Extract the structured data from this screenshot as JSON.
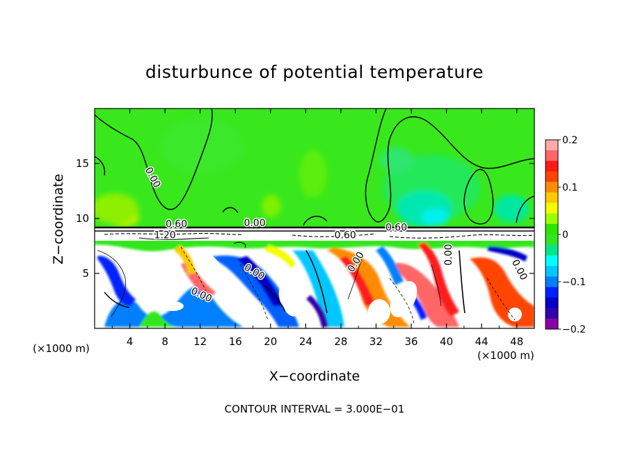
{
  "chart_data": {
    "type": "heatmap",
    "title": "disturbunce of potential temperature",
    "xlabel": "X−coordinate",
    "ylabel": "Z−coordinate",
    "x_unit": "(×1000 m)",
    "x_unit_right": "(×1000 m)",
    "footer": "CONTOUR INTERVAL = 3.000E−01",
    "xlim": [
      0,
      50
    ],
    "ylim": [
      0,
      20
    ],
    "x_ticks": [
      4,
      8,
      12,
      16,
      20,
      24,
      28,
      32,
      36,
      40,
      44,
      48
    ],
    "y_ticks": [
      5,
      10,
      15
    ],
    "colorbar": {
      "range": [
        -0.2,
        0.2
      ],
      "tick_values": [
        0.2,
        0.1,
        0,
        -0.1,
        -0.2
      ],
      "tick_labels": [
        "0.2",
        "0.1",
        "0",
        "−0.1",
        "−0.2"
      ],
      "colors_top_to_bottom": [
        "#ffaaaa",
        "#ff6666",
        "#ff1a1a",
        "#ff4400",
        "#ff8c00",
        "#ffc800",
        "#f2ff00",
        "#9cff00",
        "#2ee600",
        "#32e61e",
        "#00e68c",
        "#00ffff",
        "#00c8ff",
        "#0080ff",
        "#0020ff",
        "#0000c8",
        "#3200aa",
        "#8c00aa"
      ]
    },
    "contour_labels": [
      {
        "text": "0.00",
        "x": 6.3,
        "z": 13.6,
        "rotate": 62
      },
      {
        "text": "0.60",
        "x": 9.3,
        "z": 9.2,
        "rotate": 0
      },
      {
        "text": "1.20",
        "x": 8.0,
        "z": 8.2,
        "rotate": 0
      },
      {
        "text": "0.00",
        "x": 18.2,
        "z": 9.3,
        "rotate": 0
      },
      {
        "text": "0.60",
        "x": 28.5,
        "z": 8.2,
        "rotate": 0
      },
      {
        "text": "0.60",
        "x": 34.3,
        "z": 8.9,
        "rotate": 0
      },
      {
        "text": "0.00",
        "x": 30.0,
        "z": 5.9,
        "rotate": -58
      },
      {
        "text": "0.00",
        "x": 18.0,
        "z": 4.9,
        "rotate": 30
      },
      {
        "text": "0.00",
        "x": 12.0,
        "z": 2.8,
        "rotate": 25
      },
      {
        "text": "0.00",
        "x": 40.6,
        "z": 6.7,
        "rotate": -90
      },
      {
        "text": "0.00",
        "x": 48.0,
        "z": 5.2,
        "rotate": 62
      }
    ]
  }
}
